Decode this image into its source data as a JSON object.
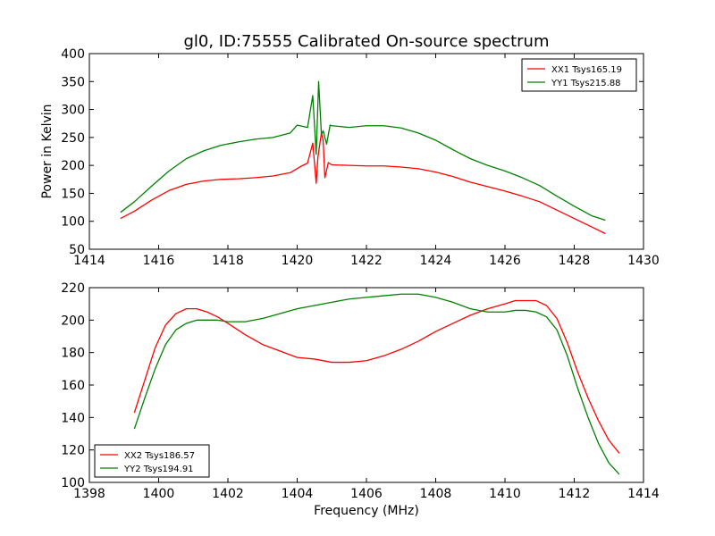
{
  "chart_data": [
    {
      "type": "line",
      "title": "gl0, ID:75555 Calibrated On-source spectrum",
      "xlabel": "",
      "ylabel": "Power in Kelvin",
      "xlim": [
        1414,
        1430
      ],
      "ylim": [
        50,
        400
      ],
      "xticks": [
        "1414",
        "1416",
        "1418",
        "1420",
        "1422",
        "1424",
        "1426",
        "1428",
        "1430"
      ],
      "yticks": [
        "50",
        "100",
        "150",
        "200",
        "250",
        "300",
        "350",
        "400"
      ],
      "legend_position": "top-right",
      "grid": false,
      "series": [
        {
          "name": "XX1 Tsys165.19",
          "color": "#ff0000",
          "x": [
            1414.9,
            1415.3,
            1415.8,
            1416.3,
            1416.8,
            1417.3,
            1417.8,
            1418.3,
            1418.8,
            1419.3,
            1419.8,
            1420.1,
            1420.3,
            1420.45,
            1420.55,
            1420.6,
            1420.7,
            1420.75,
            1420.8,
            1420.9,
            1421.0,
            1421.5,
            1422.0,
            1422.5,
            1423.0,
            1423.5,
            1424.0,
            1424.5,
            1425.0,
            1425.5,
            1426.0,
            1426.5,
            1427.0,
            1427.5,
            1428.0,
            1428.5,
            1428.9
          ],
          "y": [
            105,
            118,
            138,
            155,
            166,
            172,
            175,
            176,
            178,
            181,
            187,
            198,
            204,
            240,
            168,
            215,
            258,
            245,
            178,
            205,
            201,
            200,
            199,
            199,
            197,
            194,
            188,
            180,
            170,
            162,
            154,
            145,
            135,
            120,
            105,
            90,
            78
          ]
        },
        {
          "name": "YY1 Tsys215.88",
          "color": "#008000",
          "x": [
            1414.9,
            1415.3,
            1415.8,
            1416.3,
            1416.8,
            1417.3,
            1417.8,
            1418.3,
            1418.8,
            1419.3,
            1419.8,
            1420.0,
            1420.3,
            1420.45,
            1420.55,
            1420.62,
            1420.7,
            1420.75,
            1420.85,
            1420.95,
            1421.0,
            1421.5,
            1422.0,
            1422.5,
            1423.0,
            1423.5,
            1424.0,
            1424.5,
            1425.0,
            1425.5,
            1426.0,
            1426.5,
            1427.0,
            1427.5,
            1428.0,
            1428.5,
            1428.9
          ],
          "y": [
            116,
            135,
            163,
            190,
            212,
            226,
            236,
            242,
            247,
            250,
            258,
            272,
            268,
            325,
            220,
            350,
            255,
            262,
            238,
            272,
            271,
            268,
            271,
            271,
            267,
            258,
            245,
            228,
            212,
            200,
            190,
            178,
            164,
            145,
            127,
            110,
            102
          ]
        }
      ]
    },
    {
      "type": "line",
      "title": "",
      "xlabel": "Frequency (MHz)",
      "ylabel": "",
      "xlim": [
        1398,
        1414
      ],
      "ylim": [
        100,
        220
      ],
      "xticks": [
        "1398",
        "1400",
        "1402",
        "1404",
        "1406",
        "1408",
        "1410",
        "1412",
        "1414"
      ],
      "yticks": [
        "100",
        "120",
        "140",
        "160",
        "180",
        "200",
        "220"
      ],
      "legend_position": "bottom-left",
      "grid": false,
      "series": [
        {
          "name": "XX2 Tsys186.57",
          "color": "#ff0000",
          "x": [
            1399.3,
            1399.6,
            1399.9,
            1400.2,
            1400.5,
            1400.8,
            1401.1,
            1401.4,
            1401.7,
            1402.0,
            1402.5,
            1403.0,
            1403.5,
            1404.0,
            1404.5,
            1405.0,
            1405.5,
            1406.0,
            1406.5,
            1407.0,
            1407.5,
            1408.0,
            1408.5,
            1409.0,
            1409.5,
            1410.0,
            1410.3,
            1410.6,
            1410.9,
            1411.2,
            1411.5,
            1411.8,
            1412.1,
            1412.4,
            1412.7,
            1413.0,
            1413.3
          ],
          "y": [
            143,
            163,
            183,
            197,
            204,
            207,
            207,
            205,
            202,
            198,
            191,
            185,
            181,
            177,
            176,
            174,
            174,
            175,
            178,
            182,
            187,
            193,
            198,
            203,
            207,
            210,
            212,
            212,
            212,
            209,
            201,
            186,
            168,
            152,
            138,
            126,
            118
          ]
        },
        {
          "name": "YY2 Tsys194.91",
          "color": "#008000",
          "x": [
            1399.3,
            1399.6,
            1399.9,
            1400.2,
            1400.5,
            1400.8,
            1401.1,
            1401.4,
            1401.7,
            1402.0,
            1402.5,
            1403.0,
            1403.5,
            1404.0,
            1404.5,
            1405.0,
            1405.5,
            1406.0,
            1406.5,
            1407.0,
            1407.5,
            1408.0,
            1408.5,
            1409.0,
            1409.5,
            1410.0,
            1410.3,
            1410.6,
            1410.9,
            1411.2,
            1411.5,
            1411.8,
            1412.1,
            1412.4,
            1412.7,
            1413.0,
            1413.3
          ],
          "y": [
            133,
            152,
            170,
            185,
            194,
            198,
            200,
            200,
            200,
            199,
            199,
            201,
            204,
            207,
            209,
            211,
            213,
            214,
            215,
            216,
            216,
            214,
            211,
            207,
            205,
            205,
            206,
            206,
            205,
            202,
            194,
            178,
            158,
            140,
            124,
            112,
            105
          ]
        }
      ]
    }
  ]
}
